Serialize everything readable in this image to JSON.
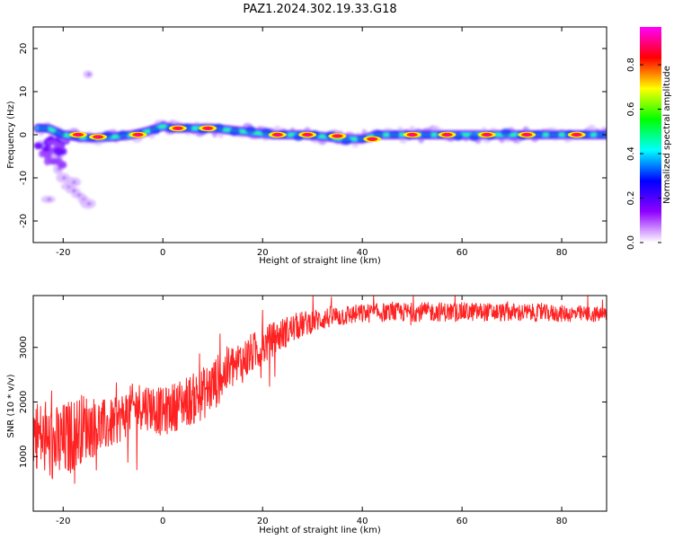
{
  "title": "PAZ1.2024.302.19.33.G18",
  "chart_data": [
    {
      "type": "heatmap",
      "xlabel": "Height of straight line (km)",
      "ylabel": "Frequency (Hz)",
      "xlim": [
        -26,
        89
      ],
      "ylim": [
        -25,
        25
      ],
      "xticks": [
        -20,
        0,
        20,
        40,
        60,
        80
      ],
      "yticks": [
        -20,
        -10,
        0,
        10,
        20
      ],
      "colorbar": {
        "label": "Normalized spectral amplitude",
        "range": [
          0,
          0.97
        ],
        "ticks": [
          0.0,
          0.2,
          0.4,
          0.6,
          0.8
        ],
        "colormap": [
          "#ffffff",
          "#8f00ff",
          "#0000ff",
          "#00ffff",
          "#00ff00",
          "#ffff00",
          "#ff0000",
          "#ff00ff"
        ]
      },
      "ridge": {
        "x": [
          -25,
          -23,
          -20,
          -17,
          -14,
          -10,
          -6,
          -3,
          0,
          2,
          5,
          10,
          14,
          18,
          22,
          28,
          33,
          36,
          40,
          43,
          47,
          55,
          62,
          68,
          75,
          82,
          89
        ],
        "frequency": [
          1.5,
          1.5,
          0,
          -0.5,
          -0.8,
          -0.5,
          0,
          0.8,
          2,
          1.5,
          1.5,
          1.5,
          1,
          0.5,
          0,
          0,
          -0.5,
          -1,
          -1,
          0,
          0,
          0,
          0,
          0,
          0,
          0,
          0
        ],
        "peaks": [
          [
            -17,
            0
          ],
          [
            -13,
            -0.5
          ],
          [
            -5,
            0
          ],
          [
            3,
            1.5
          ],
          [
            9,
            1.5
          ],
          [
            23,
            0
          ],
          [
            29,
            0
          ],
          [
            35,
            -0.3
          ],
          [
            42,
            -1
          ],
          [
            50,
            0
          ],
          [
            57,
            0
          ],
          [
            65,
            0
          ],
          [
            73,
            0
          ],
          [
            83,
            0
          ]
        ]
      },
      "scatter_blobs": {
        "x": [
          -24,
          -23,
          -22,
          -21,
          -20,
          -19,
          -18,
          -17,
          -16,
          -15,
          -15,
          -23,
          -21,
          -18
        ],
        "frequency": [
          -2,
          -4,
          -6,
          -8,
          -10,
          -12,
          -13,
          -14,
          -15,
          -16,
          14,
          -15,
          -5,
          -11
        ]
      }
    },
    {
      "type": "line",
      "xlabel": "Height of straight line (km)",
      "ylabel": "SNR (10 * v/v)",
      "xlim": [
        -26,
        89
      ],
      "ylim": [
        0,
        3950
      ],
      "xticks": [
        -20,
        0,
        20,
        40,
        60,
        80
      ],
      "yticks": [
        1000,
        2000,
        3000
      ],
      "color": "#ff2222",
      "trend": {
        "x": [
          -26,
          -24,
          -22,
          -20,
          -18,
          -16,
          -14,
          -12,
          -10,
          -8,
          -6,
          -4,
          -2,
          0,
          2,
          4,
          6,
          8,
          10,
          12,
          14,
          16,
          18,
          20,
          22,
          24,
          26,
          28,
          30,
          32,
          34,
          36,
          38,
          40,
          44,
          48,
          52,
          56,
          60,
          64,
          68,
          72,
          76,
          80,
          84,
          89
        ],
        "y": [
          1500,
          1300,
          1200,
          1250,
          1400,
          1550,
          1550,
          1550,
          1600,
          1750,
          1900,
          1950,
          1900,
          1800,
          1900,
          2000,
          2050,
          2150,
          2300,
          2500,
          2650,
          2750,
          2900,
          3000,
          3150,
          3250,
          3350,
          3420,
          3480,
          3520,
          3560,
          3580,
          3600,
          3620,
          3640,
          3640,
          3650,
          3650,
          3650,
          3650,
          3640,
          3640,
          3630,
          3620,
          3610,
          3600
        ]
      },
      "noise": {
        "x": [
          -26,
          -20,
          -10,
          0,
          10,
          20,
          30,
          40,
          60,
          89
        ],
        "amplitude": [
          650,
          750,
          450,
          450,
          500,
          350,
          220,
          180,
          180,
          150
        ]
      }
    }
  ]
}
